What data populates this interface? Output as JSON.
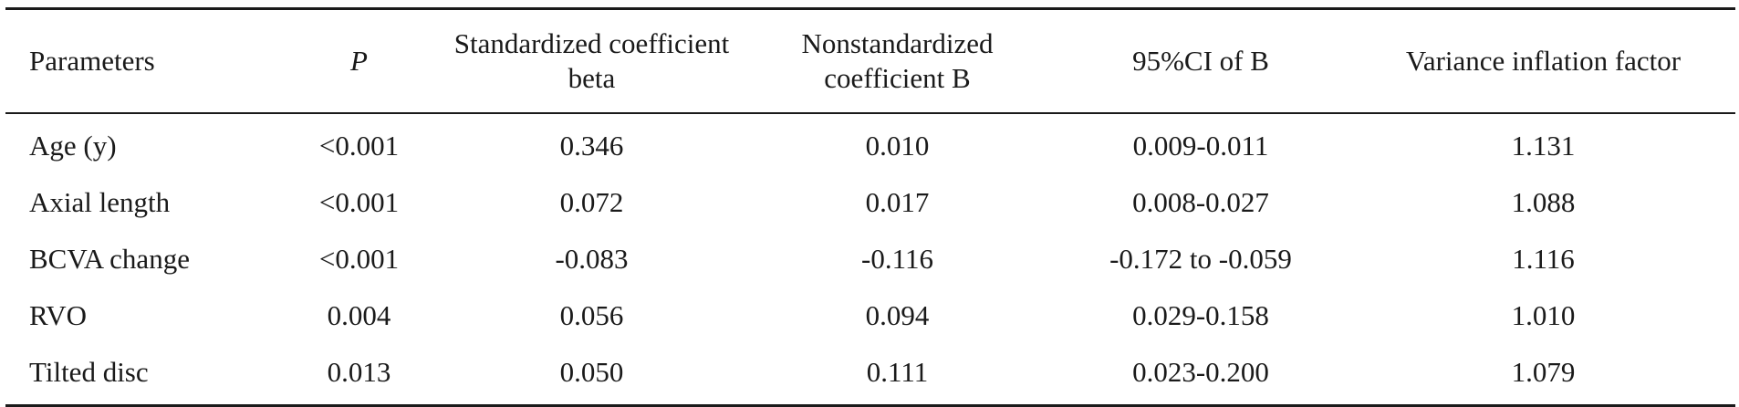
{
  "table": {
    "headers": [
      "Parameters",
      "P",
      "Standardized coefficient beta",
      "Nonstandardized coefficient B",
      "95%CI of B",
      "Variance inflation factor"
    ],
    "rows": [
      [
        "Age (y)",
        "<0.001",
        "0.346",
        "0.010",
        "0.009-0.011",
        "1.131"
      ],
      [
        "Axial length",
        "<0.001",
        "0.072",
        "0.017",
        "0.008-0.027",
        "1.088"
      ],
      [
        "BCVA change",
        "<0.001",
        "-0.083",
        "-0.116",
        "-0.172 to -0.059",
        "1.116"
      ],
      [
        "RVO",
        "0.004",
        "0.056",
        "0.094",
        "0.029-0.158",
        "1.010"
      ],
      [
        "Tilted disc",
        "0.013",
        "0.050",
        "0.111",
        "0.023-0.200",
        "1.079"
      ]
    ]
  }
}
